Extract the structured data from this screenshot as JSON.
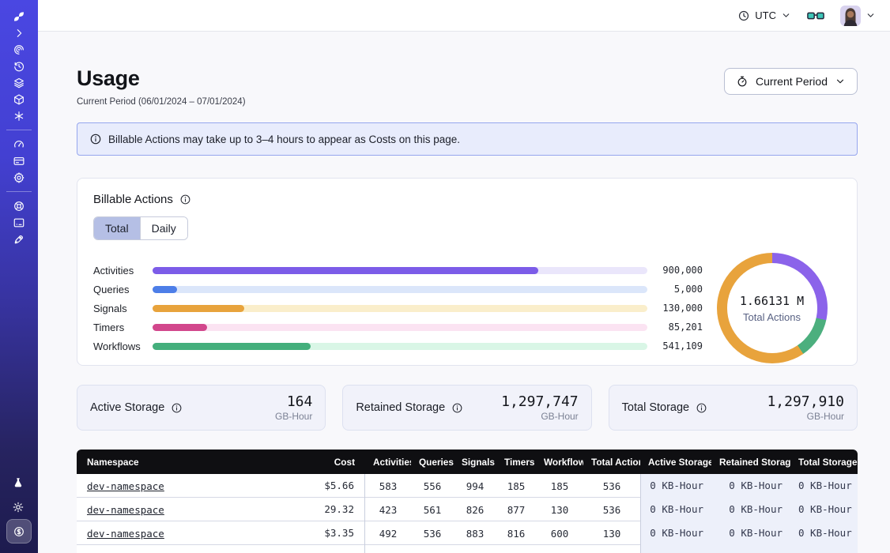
{
  "topbar": {
    "timezone": "UTC"
  },
  "sidebar": {
    "sections": [
      {
        "kind": "logo",
        "icons": [
          "temporal-logo"
        ]
      },
      {
        "kind": "group",
        "icons": [
          "chevron-right"
        ]
      },
      {
        "kind": "group",
        "icons": [
          "spiral",
          "history-clock",
          "layers",
          "cube",
          "asterisk"
        ]
      },
      {
        "kind": "group",
        "icons": [
          "gauge",
          "credit-card",
          "gear"
        ]
      },
      {
        "kind": "group",
        "icons": [
          "lifebuoy",
          "terminal",
          "rocket"
        ]
      },
      {
        "kind": "bottom",
        "icons": [
          "flask",
          "sun",
          "dollar-coin"
        ]
      }
    ],
    "active_icon": "dollar-coin"
  },
  "page": {
    "title": "Usage",
    "subtitle": "Current Period (06/01/2024 – 07/01/2024)",
    "period_button_label": "Current Period"
  },
  "banner": {
    "text": "Billable Actions may take up to 3–4 hours to appear as Costs on this page."
  },
  "billable": {
    "title": "Billable Actions",
    "tabs": [
      "Total",
      "Daily"
    ],
    "active_tab": "Total"
  },
  "chart_data": {
    "type": "bar",
    "title": "Billable Actions (Total)",
    "categories": [
      "Activities",
      "Queries",
      "Signals",
      "Timers",
      "Workflows"
    ],
    "values": [
      900000,
      5000,
      130000,
      85201,
      541109
    ],
    "value_labels": [
      "900,000",
      "5,000",
      "130,000",
      "85,201",
      "541,109"
    ],
    "bar_fill_percent": [
      78,
      5,
      18.5,
      11,
      32
    ],
    "bar_colors": [
      "#7C5CE8",
      "#4D7EE8",
      "#E8A33C",
      "#D2478C",
      "#44AF7C"
    ],
    "track_colors": [
      "#EAE6FB",
      "#DBE6FA",
      "#FAEECB",
      "#FBE3F2",
      "#D9F6E6"
    ],
    "donut": {
      "center_value": "1.66131 M",
      "center_label": "Total Actions",
      "segments": [
        {
          "name": "activities",
          "color": "#8B63EA",
          "percent": 28.5
        },
        {
          "name": "workflows",
          "color": "#4CAF7E",
          "percent": 12
        },
        {
          "name": "signals",
          "color": "#E8A33C",
          "percent": 59.5
        }
      ]
    }
  },
  "storage_cards": [
    {
      "label": "Active Storage",
      "value": "164",
      "unit": "GB-Hour"
    },
    {
      "label": "Retained Storage",
      "value": "1,297,747",
      "unit": "GB-Hour"
    },
    {
      "label": "Total Storage",
      "value": "1,297,910",
      "unit": "GB-Hour"
    }
  ],
  "table": {
    "columns": [
      "Namespace",
      "Cost",
      "Activities",
      "Queries",
      "Signals",
      "Timers",
      "Workflows",
      "Total Actions",
      "Active Storage",
      "Retained Storage",
      "Total Storage"
    ],
    "rows": [
      [
        "dev-namespace",
        "$5.66",
        "583",
        "556",
        "994",
        "185",
        "185",
        "536",
        "0 KB-Hour",
        "0 KB-Hour",
        "0 KB-Hour"
      ],
      [
        "dev-namespace",
        "29.32",
        "423",
        "561",
        "826",
        "877",
        "130",
        "536",
        "0 KB-Hour",
        "0 KB-Hour",
        "0 KB-Hour"
      ],
      [
        "dev-namespace",
        "$3.35",
        "492",
        "536",
        "883",
        "816",
        "600",
        "130",
        "0 KB-Hour",
        "0 KB-Hour",
        "0 KB-Hour"
      ]
    ]
  }
}
